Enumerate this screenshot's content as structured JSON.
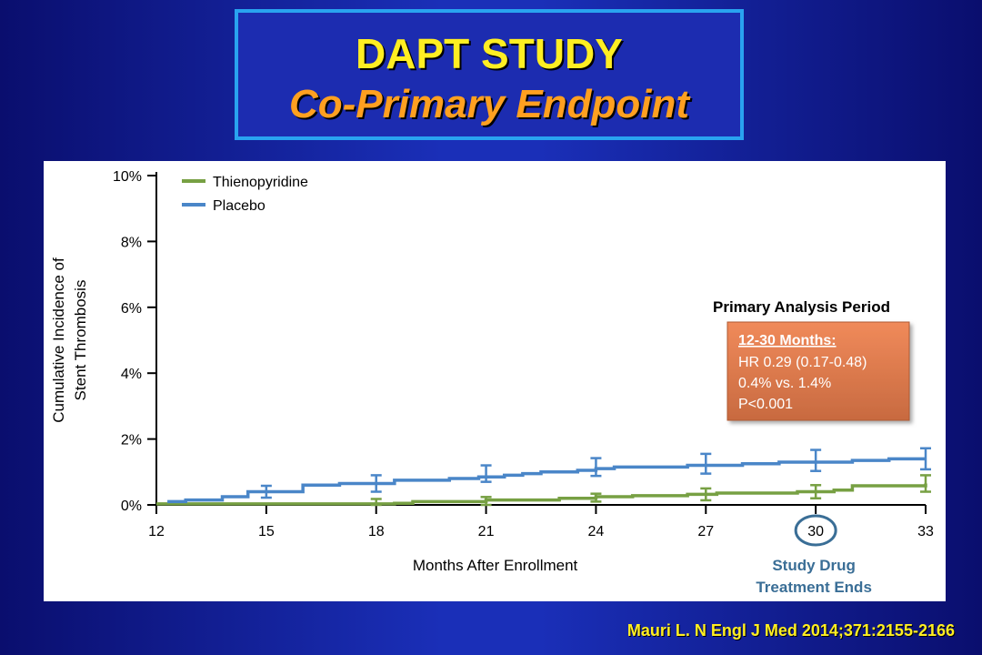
{
  "slide": {
    "title": "DAPT STUDY",
    "subtitle": "Co-Primary Endpoint",
    "citation": "Mauri L. N Engl J Med 2014;371:2155-2166"
  },
  "colors": {
    "thienopyridine": "#77a043",
    "placebo": "#4a86c8",
    "title": "#ffee22",
    "subtitle": "#ffa020"
  },
  "chart_data": {
    "type": "line",
    "xlabel": "Months After Enrollment",
    "ylabel_lines": [
      "Cumulative Incidence of",
      "Stent Thrombosis"
    ],
    "x_ticks": [
      12,
      15,
      18,
      21,
      24,
      27,
      30,
      33
    ],
    "y_ticks": [
      "0%",
      "2%",
      "4%",
      "6%",
      "8%",
      "10%"
    ],
    "xlim": [
      12,
      33
    ],
    "ylim": [
      0,
      10
    ],
    "legend_position": "top-left",
    "series": [
      {
        "name": "Thienopyridine",
        "color": "#77a043",
        "x": [
          12,
          18.5,
          19,
          21,
          23,
          24,
          25,
          26.5,
          27.3,
          29.5,
          30.5,
          31,
          33
        ],
        "y": [
          0.03,
          0.05,
          0.1,
          0.15,
          0.2,
          0.25,
          0.28,
          0.32,
          0.36,
          0.4,
          0.45,
          0.58,
          0.65
        ],
        "errorbars": [
          {
            "x": 18,
            "y": 0.06,
            "err": 0.12
          },
          {
            "x": 21,
            "y": 0.12,
            "err": 0.12
          },
          {
            "x": 24,
            "y": 0.22,
            "err": 0.12
          },
          {
            "x": 27,
            "y": 0.32,
            "err": 0.18
          },
          {
            "x": 30,
            "y": 0.4,
            "err": 0.2
          },
          {
            "x": 33,
            "y": 0.65,
            "err": 0.25
          }
        ]
      },
      {
        "name": "Placebo",
        "color": "#4a86c8",
        "x": [
          12.3,
          12.8,
          13.8,
          14.5,
          16,
          17,
          18.5,
          20,
          20.8,
          21.5,
          22,
          22.5,
          23.5,
          24,
          24.5,
          26.5,
          28,
          29,
          31,
          32,
          33
        ],
        "y": [
          0.1,
          0.15,
          0.25,
          0.4,
          0.6,
          0.65,
          0.75,
          0.8,
          0.85,
          0.9,
          0.95,
          1.0,
          1.05,
          1.1,
          1.15,
          1.2,
          1.25,
          1.3,
          1.35,
          1.4,
          1.4
        ],
        "errorbars": [
          {
            "x": 15,
            "y": 0.4,
            "err": 0.18
          },
          {
            "x": 18,
            "y": 0.65,
            "err": 0.25
          },
          {
            "x": 21,
            "y": 0.95,
            "err": 0.25
          },
          {
            "x": 24,
            "y": 1.15,
            "err": 0.27
          },
          {
            "x": 27,
            "y": 1.25,
            "err": 0.3
          },
          {
            "x": 30,
            "y": 1.35,
            "err": 0.32
          },
          {
            "x": 33,
            "y": 1.4,
            "err": 0.32
          }
        ]
      }
    ],
    "annotation": {
      "heading": "Primary Analysis Period",
      "box_title": "12-30 Months:",
      "lines": [
        "HR 0.29 (0.17-0.48)",
        "0.4% vs. 1.4%",
        "P<0.001"
      ],
      "box_color": "#d9784c"
    },
    "highlight": {
      "x": 30,
      "note_lines": [
        "Study Drug",
        "Treatment Ends"
      ],
      "note_color": "#3a6e96"
    }
  }
}
